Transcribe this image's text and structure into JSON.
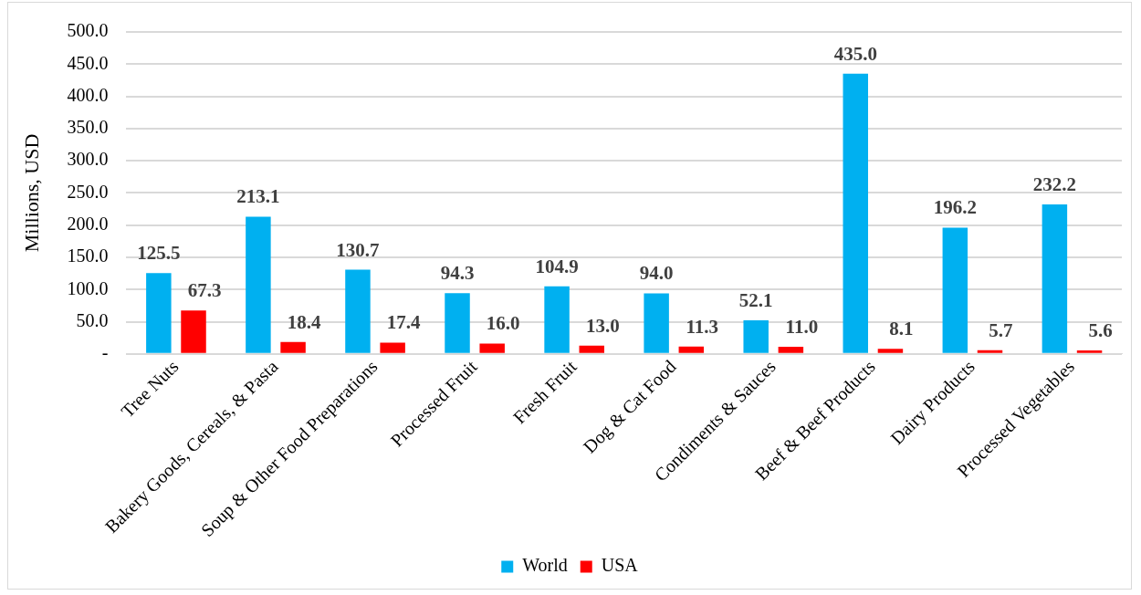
{
  "chart_data": {
    "type": "bar",
    "ylabel": "Millions, USD",
    "categories": [
      "Tree Nuts",
      "Bakery Goods, Cereals, & Pasta",
      "Soup & Other Food Preparations",
      "Processed Fruit",
      "Fresh Fruit",
      "Dog & Cat Food",
      "Condiments & Sauces",
      "Beef & Beef Products",
      "Dairy Products",
      "Processed Vegetables"
    ],
    "series": [
      {
        "name": "World",
        "color": "#00b0f0",
        "values": [
          125.5,
          213.1,
          130.7,
          94.3,
          104.9,
          94.0,
          52.1,
          435.0,
          196.2,
          232.2
        ],
        "value_labels": [
          "125.5",
          "213.1",
          "130.7",
          "94.3",
          "104.9",
          "94.0",
          "52.1",
          "435.0",
          "196.2",
          "232.2"
        ]
      },
      {
        "name": "USA",
        "color": "#ff0000",
        "values": [
          67.3,
          18.4,
          17.4,
          16.0,
          13.0,
          11.3,
          11.0,
          8.1,
          5.7,
          5.6
        ],
        "value_labels": [
          "67.3",
          "18.4",
          "17.4",
          "16.0",
          "13.0",
          "11.3",
          "11.0",
          "8.1",
          "5.7",
          "5.6"
        ]
      }
    ],
    "ylim": [
      0,
      500
    ],
    "yticks": [
      {
        "value": 0,
        "label": "-"
      },
      {
        "value": 50,
        "label": "50.0"
      },
      {
        "value": 100,
        "label": "100.0"
      },
      {
        "value": 150,
        "label": "150.0"
      },
      {
        "value": 200,
        "label": "200.0"
      },
      {
        "value": 250,
        "label": "250.0"
      },
      {
        "value": 300,
        "label": "300.0"
      },
      {
        "value": 350,
        "label": "350.0"
      },
      {
        "value": 400,
        "label": "400.0"
      },
      {
        "value": 450,
        "label": "450.0"
      },
      {
        "value": 500,
        "label": "500.0"
      }
    ],
    "grid": "y",
    "legend": "bottom"
  }
}
